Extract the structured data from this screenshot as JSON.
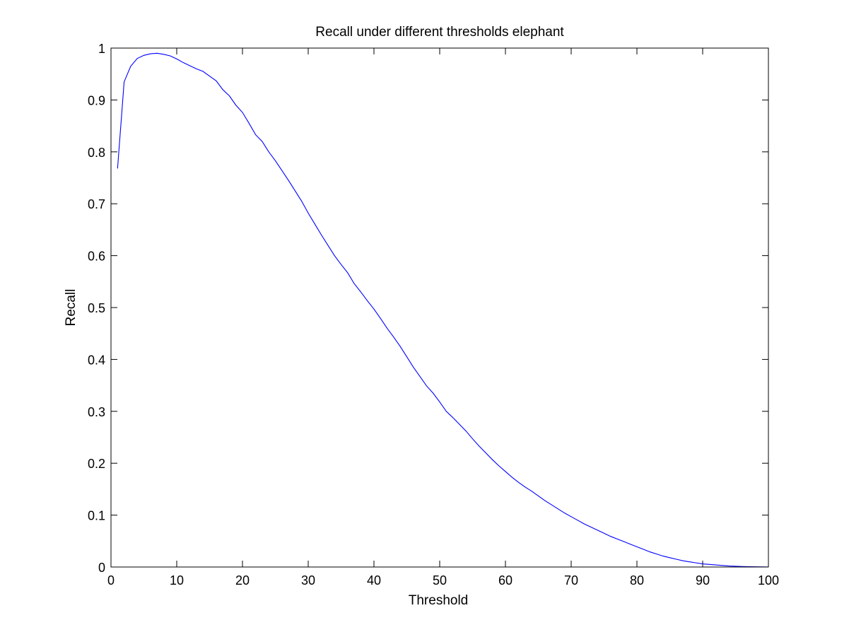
{
  "chart_data": {
    "type": "line",
    "title": "Recall under different thresholds elephant",
    "xlabel": "Threshold",
    "ylabel": "Recall",
    "xlim": [
      0,
      100
    ],
    "ylim": [
      0,
      1
    ],
    "grid": false,
    "xticks": [
      "0",
      "10",
      "20",
      "30",
      "40",
      "50",
      "60",
      "70",
      "80",
      "90",
      "100"
    ],
    "yticks": [
      "0",
      "0.1",
      "0.2",
      "0.3",
      "0.4",
      "0.5",
      "0.6",
      "0.7",
      "0.8",
      "0.9",
      "1"
    ],
    "line_color": "#0000ff",
    "series": [
      {
        "x": [
          1,
          2,
          3,
          4,
          5,
          6,
          7,
          8,
          9,
          10,
          11,
          12,
          13,
          14,
          15,
          16,
          17,
          18,
          19,
          20,
          21,
          22,
          23,
          24,
          25,
          26,
          27,
          28,
          29,
          30,
          31,
          32,
          33,
          34,
          35,
          36,
          37,
          38,
          39,
          40,
          41,
          42,
          43,
          44,
          45,
          46,
          47,
          48,
          49,
          50,
          51,
          52,
          53,
          54,
          55,
          56,
          57,
          58,
          59,
          60,
          61,
          62,
          63,
          64,
          65,
          66,
          67,
          68,
          69,
          70,
          71,
          72,
          73,
          74,
          75,
          76,
          77,
          78,
          79,
          80,
          81,
          82,
          83,
          84,
          85,
          86,
          87,
          88,
          89,
          90,
          91,
          92,
          93,
          94,
          95,
          96,
          97,
          98,
          99,
          100
        ],
        "y": [
          0.768,
          0.935,
          0.965,
          0.98,
          0.986,
          0.989,
          0.99,
          0.988,
          0.985,
          0.979,
          0.972,
          0.966,
          0.96,
          0.955,
          0.946,
          0.937,
          0.92,
          0.908,
          0.89,
          0.876,
          0.855,
          0.833,
          0.82,
          0.8,
          0.783,
          0.764,
          0.745,
          0.725,
          0.705,
          0.682,
          0.661,
          0.64,
          0.62,
          0.6,
          0.583,
          0.567,
          0.546,
          0.53,
          0.513,
          0.497,
          0.479,
          0.46,
          0.443,
          0.425,
          0.405,
          0.385,
          0.367,
          0.349,
          0.335,
          0.318,
          0.3,
          0.288,
          0.275,
          0.262,
          0.247,
          0.233,
          0.22,
          0.207,
          0.195,
          0.184,
          0.173,
          0.163,
          0.154,
          0.146,
          0.137,
          0.128,
          0.12,
          0.112,
          0.104,
          0.097,
          0.09,
          0.083,
          0.077,
          0.071,
          0.065,
          0.059,
          0.054,
          0.049,
          0.044,
          0.039,
          0.034,
          0.029,
          0.025,
          0.021,
          0.018,
          0.015,
          0.012,
          0.01,
          0.008,
          0.006,
          0.005,
          0.004,
          0.003,
          0.002,
          0.0015,
          0.001,
          0.0007,
          0.0004,
          0.0002,
          0.0001
        ]
      }
    ]
  }
}
